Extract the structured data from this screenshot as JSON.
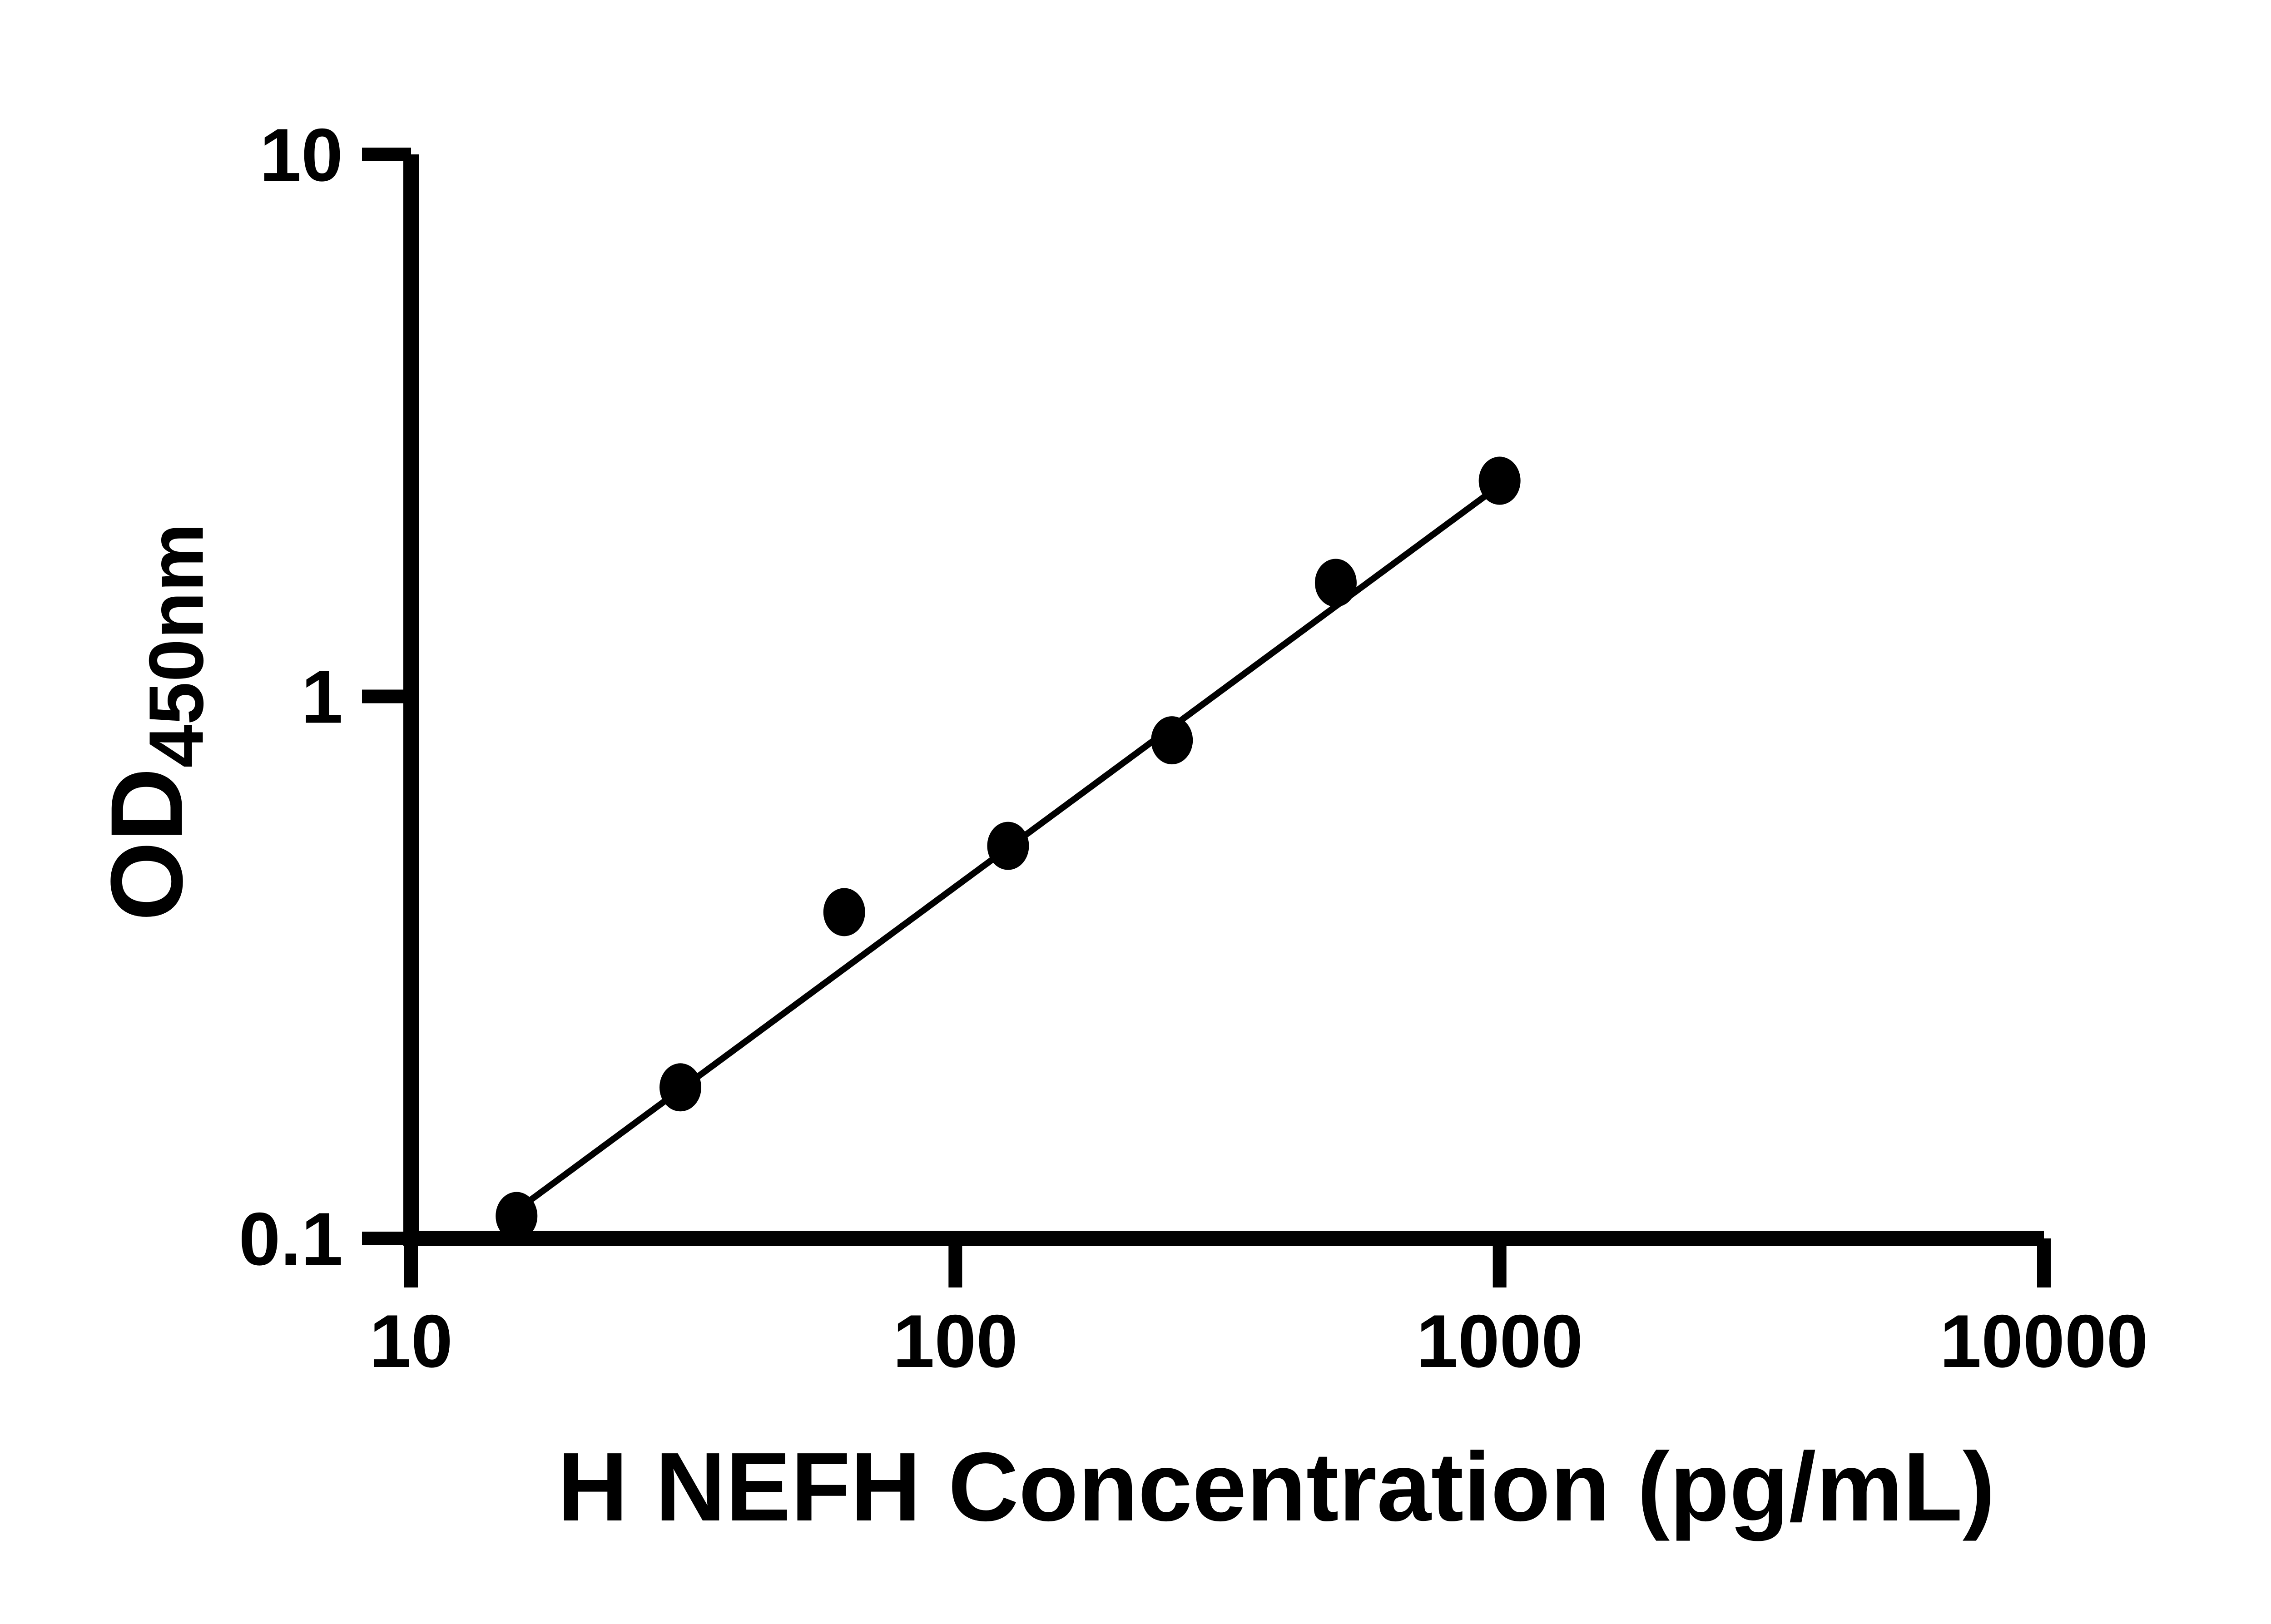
{
  "figure": {
    "background_color": "#ffffff",
    "ink_color": "#000000"
  },
  "chart_data": {
    "type": "scatter",
    "title": "",
    "xlabel": "H NEFH Concentration (pg/mL)",
    "ylabel": "OD",
    "ylabel_subscript": "450nm",
    "x_scale": "log",
    "y_scale": "log",
    "xlim": [
      10,
      10000
    ],
    "ylim": [
      0.1,
      10
    ],
    "grid": "off",
    "legend": "none",
    "marker_color": "#000000",
    "line_color": "#000000",
    "x_ticks": [
      {
        "value": 10,
        "label": "10"
      },
      {
        "value": 100,
        "label": "100"
      },
      {
        "value": 1000,
        "label": "1000"
      },
      {
        "value": 10000,
        "label": "10000"
      }
    ],
    "y_ticks": [
      {
        "value": 0.1,
        "label": "0.1"
      },
      {
        "value": 1,
        "label": "1"
      },
      {
        "value": 10,
        "label": "10"
      }
    ],
    "points": [
      {
        "x": 15.625,
        "od": 0.11
      },
      {
        "x": 31.25,
        "od": 0.19
      },
      {
        "x": 62.5,
        "od": 0.4
      },
      {
        "x": 125,
        "od": 0.53
      },
      {
        "x": 250,
        "od": 0.83
      },
      {
        "x": 500,
        "od": 1.62
      },
      {
        "x": 1000,
        "od": 2.5
      }
    ],
    "trendline": {
      "x1": 15.5,
      "y1": 0.112,
      "x2": 1016,
      "y2": 2.48
    }
  }
}
